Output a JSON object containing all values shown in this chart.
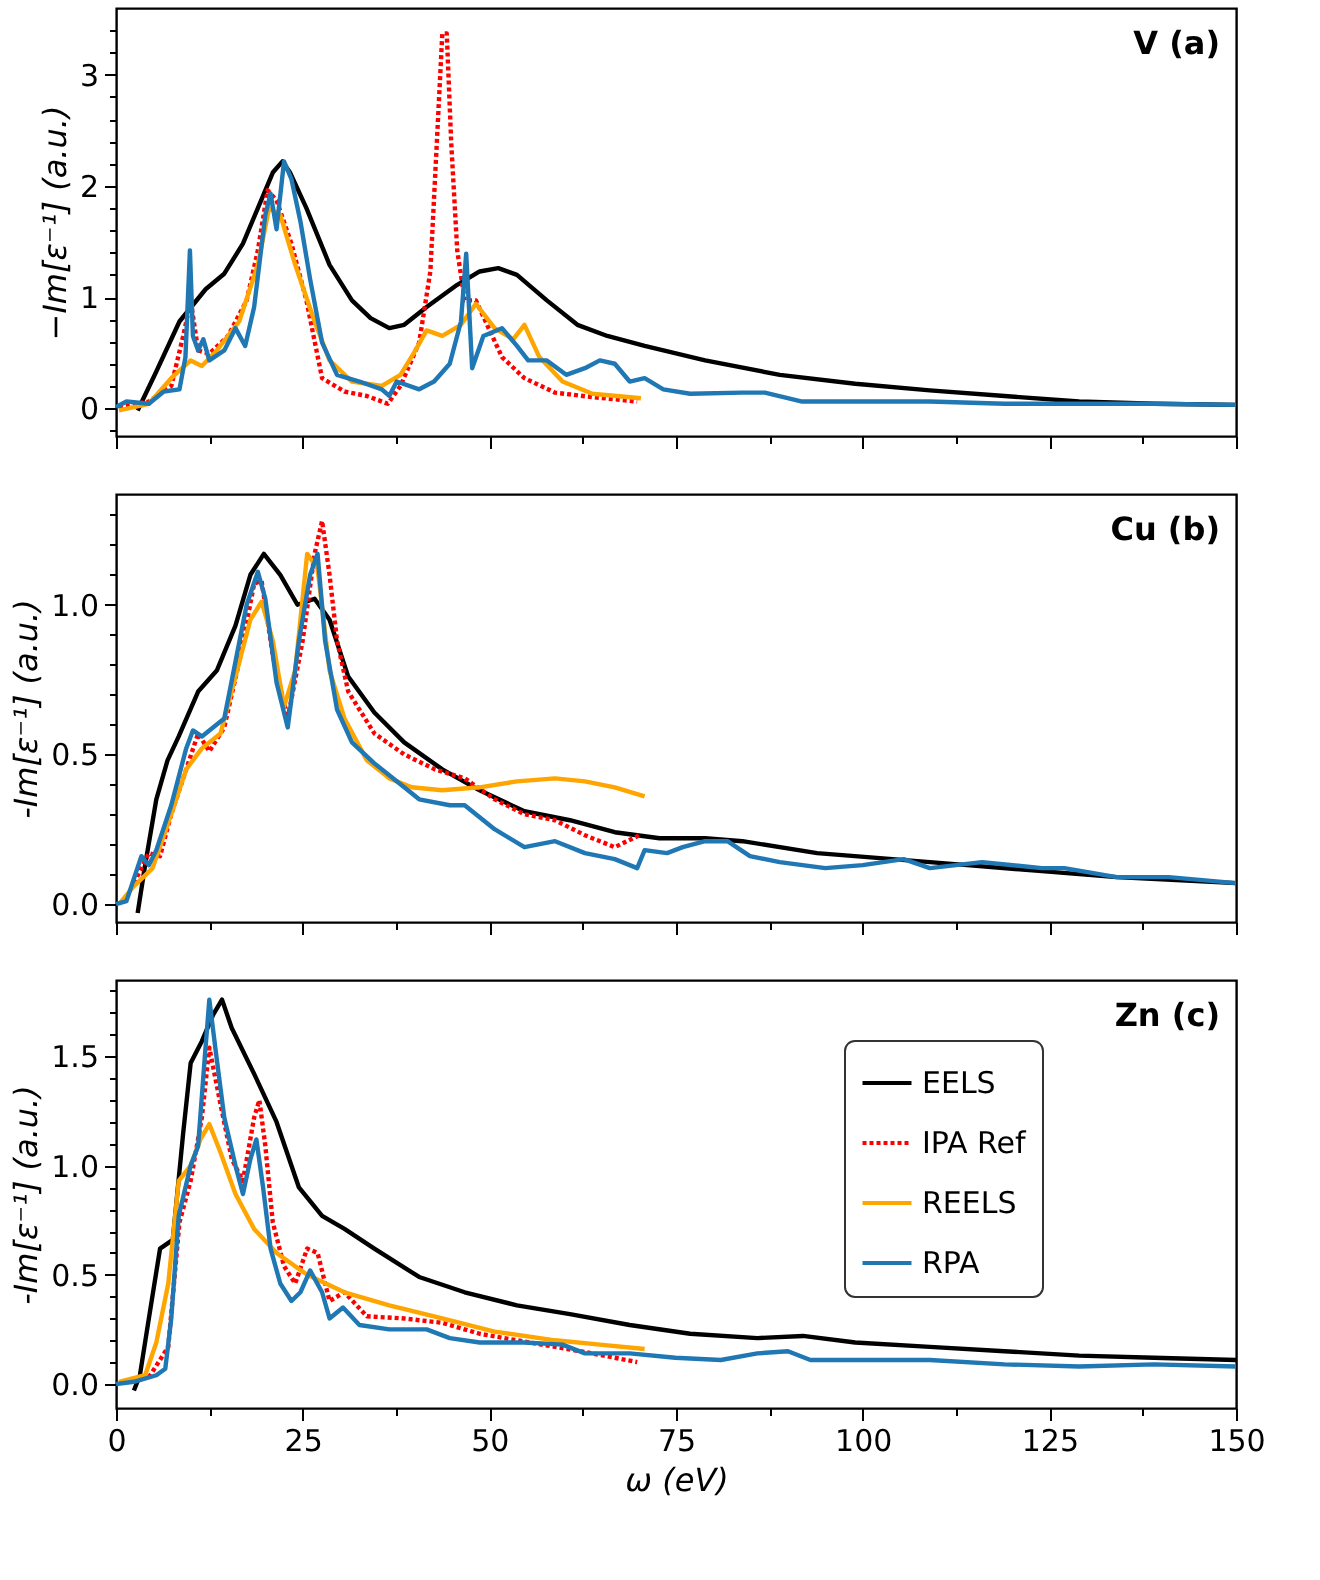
{
  "chart_data": [
    {
      "type": "line",
      "annotations": [
        "V (a)"
      ],
      "ylabel": "−Im[ε⁻¹] (a.u.)",
      "xlim": [
        0,
        150
      ],
      "ylim": [
        -0.25,
        3.6
      ],
      "tick_labels": "y",
      "grid": false,
      "legend": false,
      "xticks": [
        0,
        {
          "value": 12.5,
          "label": null
        },
        25,
        {
          "value": 37.5,
          "label": null
        },
        50,
        {
          "value": 62.5,
          "label": null
        },
        75,
        {
          "value": 87.5,
          "label": null
        },
        100,
        {
          "value": 112.5,
          "label": null
        },
        125,
        {
          "value": 137.5,
          "label": null
        },
        150
      ],
      "yticks": [
        {
          "value": -0.2,
          "label": null
        },
        0,
        {
          "value": 0.2,
          "label": null
        },
        {
          "value": 0.4,
          "label": null
        },
        {
          "value": 0.6,
          "label": null
        },
        {
          "value": 0.8,
          "label": null
        },
        1,
        {
          "value": 1.2,
          "label": null
        },
        {
          "value": 1.4,
          "label": null
        },
        {
          "value": 1.6,
          "label": null
        },
        {
          "value": 1.8,
          "label": null
        },
        2,
        {
          "value": 2.2,
          "label": null
        },
        {
          "value": 2.4,
          "label": null
        },
        {
          "value": 2.6,
          "label": null
        },
        {
          "value": 2.8,
          "label": null
        },
        3,
        {
          "value": 3.2,
          "label": null
        },
        {
          "value": 3.4,
          "label": null
        }
      ],
      "series": [
        {
          "color": "#000000",
          "line_style": "solid",
          "x": [
            2.9,
            5.4,
            8.5,
            12,
            14.5,
            17,
            19,
            21,
            22.3,
            23.3,
            25.5,
            28.6,
            31.6,
            34.1,
            36.6,
            38.6,
            41.6,
            45.7,
            48.7,
            51.2,
            53.7,
            57.7,
            61.8,
            65.8,
            70.8,
            78.9,
            88.9,
            99,
            109,
            119,
            129,
            139,
            150
          ],
          "values": [
            -0.02,
            0.33,
            0.78,
            1.07,
            1.21,
            1.48,
            1.8,
            2.12,
            2.22,
            2.12,
            1.8,
            1.29,
            0.97,
            0.81,
            0.72,
            0.75,
            0.91,
            1.11,
            1.23,
            1.26,
            1.2,
            0.97,
            0.75,
            0.65,
            0.56,
            0.43,
            0.3,
            0.22,
            0.16,
            0.11,
            0.06,
            0.04,
            0.03
          ]
        },
        {
          "color": "#ff0000",
          "line_style": "dotted",
          "x": [
            0.4,
            4.4,
            7.4,
            9,
            10,
            11,
            12.5,
            15,
            17.5,
            19,
            20.3,
            21.5,
            23.5,
            25.5,
            27.6,
            30.6,
            33.6,
            36.4,
            38.1,
            40.6,
            42.1,
            43.2,
            43.7,
            44.3,
            44.9,
            45.7,
            46.7,
            48.2,
            49.7,
            51.7,
            54.7,
            58.8,
            63.8,
            69.8
          ],
          "values": [
            0.01,
            0.06,
            0.2,
            0.65,
            0.97,
            0.52,
            0.49,
            0.65,
            0.97,
            1.42,
            1.96,
            1.87,
            1.48,
            0.97,
            0.27,
            0.15,
            0.11,
            0.04,
            0.2,
            0.59,
            1.23,
            2.7,
            3.37,
            3.37,
            2.38,
            1.42,
            0.97,
            0.97,
            0.75,
            0.46,
            0.27,
            0.14,
            0.1,
            0.06
          ]
        },
        {
          "color": "#ffa500",
          "line_style": "solid",
          "x": [
            0.4,
            4.4,
            7.4,
            10,
            11.5,
            13.5,
            16.5,
            19,
            20.5,
            22,
            24,
            26.6,
            28.6,
            31.6,
            35.6,
            38.1,
            40.1,
            41.6,
            43.7,
            46.2,
            48.2,
            50.7,
            53.2,
            54.7,
            56.7,
            59.8,
            63.8,
            70.3
          ],
          "values": [
            -0.02,
            0.04,
            0.27,
            0.43,
            0.38,
            0.52,
            0.78,
            1.29,
            1.8,
            1.74,
            1.29,
            0.78,
            0.43,
            0.24,
            0.2,
            0.3,
            0.52,
            0.7,
            0.65,
            0.75,
            0.94,
            0.72,
            0.62,
            0.75,
            0.46,
            0.24,
            0.13,
            0.09
          ]
        },
        {
          "color": "#1f77b4",
          "line_style": "solid",
          "x": [
            0,
            1.4,
            4.4,
            6.4,
            8.5,
            9.3,
            9.9,
            10.3,
            11,
            11.7,
            12.5,
            14.5,
            16,
            17.3,
            18.5,
            20,
            20.7,
            21.5,
            22.5,
            23.5,
            24.7,
            26,
            27.6,
            29.6,
            32.6,
            35.6,
            36.6,
            37.6,
            40.6,
            42.6,
            44.7,
            46.2,
            46.9,
            47.7,
            49.2,
            51.7,
            53.7,
            55.2,
            57.7,
            60.3,
            62.8,
            64.8,
            66.8,
            68.8,
            70.8,
            73.3,
            76.9,
            83.9,
            86.9,
            91.9,
            99,
            109,
            119,
            129,
            139,
            150
          ],
          "values": [
            0.01,
            0.06,
            0.04,
            0.15,
            0.17,
            0.46,
            1.42,
            0.65,
            0.52,
            0.62,
            0.43,
            0.52,
            0.72,
            0.56,
            0.91,
            1.74,
            1.93,
            1.61,
            2.22,
            2.06,
            1.68,
            1.16,
            0.59,
            0.3,
            0.24,
            0.17,
            0.11,
            0.24,
            0.17,
            0.24,
            0.4,
            0.78,
            1.39,
            0.36,
            0.65,
            0.72,
            0.56,
            0.43,
            0.43,
            0.3,
            0.36,
            0.43,
            0.4,
            0.24,
            0.27,
            0.17,
            0.13,
            0.14,
            0.14,
            0.06,
            0.06,
            0.06,
            0.04,
            0.04,
            0.04,
            0.03
          ]
        }
      ]
    },
    {
      "type": "line",
      "annotations": [
        "Cu (b)"
      ],
      "ylabel": "-Im[ε⁻¹] (a.u.)",
      "xlim": [
        0,
        150
      ],
      "ylim": [
        -0.06,
        1.37
      ],
      "tick_labels": "y",
      "grid": false,
      "legend": false,
      "xticks": [
        0,
        {
          "value": 12.5,
          "label": null
        },
        25,
        {
          "value": 37.5,
          "label": null
        },
        50,
        {
          "value": 62.5,
          "label": null
        },
        75,
        {
          "value": 87.5,
          "label": null
        },
        100,
        {
          "value": 112.5,
          "label": null
        },
        125,
        {
          "value": 137.5,
          "label": null
        },
        150
      ],
      "yticks": [
        {
          "value": 0,
          "label": "0.0"
        },
        {
          "value": 0.1,
          "label": null
        },
        {
          "value": 0.2,
          "label": null
        },
        {
          "value": 0.3,
          "label": null
        },
        {
          "value": 0.4,
          "label": null
        },
        0.5,
        {
          "value": 0.6,
          "label": null
        },
        {
          "value": 0.7,
          "label": null
        },
        {
          "value": 0.8,
          "label": null
        },
        {
          "value": 0.9,
          "label": null
        },
        {
          "value": 1,
          "label": "1.0"
        },
        {
          "value": 1.1,
          "label": null
        },
        {
          "value": 1.2,
          "label": null
        },
        {
          "value": 1.3,
          "label": null
        }
      ],
      "series": [
        {
          "color": "#000000",
          "line_style": "solid",
          "x": [
            2.9,
            3.9,
            5.4,
            6.9,
            8.4,
            11,
            13.5,
            16,
            18,
            19.8,
            22,
            24.3,
            26.6,
            28.6,
            31.1,
            34.6,
            38.6,
            43.7,
            48.7,
            54.7,
            60.8,
            66.8,
            72.8,
            78.9,
            83.9,
            93.9,
            104,
            114,
            124,
            134,
            150
          ],
          "values": [
            -0.03,
            0.13,
            0.35,
            0.48,
            0.56,
            0.71,
            0.78,
            0.93,
            1.1,
            1.17,
            1.1,
            1.0,
            1.02,
            0.95,
            0.76,
            0.64,
            0.54,
            0.45,
            0.38,
            0.31,
            0.28,
            0.24,
            0.22,
            0.22,
            0.21,
            0.17,
            0.15,
            0.13,
            0.11,
            0.09,
            0.07
          ]
        },
        {
          "color": "#ff0000",
          "line_style": "dotted",
          "x": [
            2.4,
            4.4,
            5.9,
            7.4,
            9.4,
            11,
            12.5,
            14.5,
            16.5,
            18.5,
            19.5,
            21,
            23,
            25,
            26.6,
            27.6,
            28.6,
            29.6,
            31.1,
            34.6,
            38.6,
            42.7,
            46.7,
            50.7,
            54.7,
            58.8,
            62.8,
            66.8,
            70.1
          ],
          "values": [
            0.07,
            0.17,
            0.16,
            0.3,
            0.45,
            0.57,
            0.51,
            0.59,
            0.81,
            1.07,
            1.08,
            0.83,
            0.62,
            0.88,
            1.17,
            1.28,
            1.1,
            0.88,
            0.71,
            0.57,
            0.5,
            0.45,
            0.42,
            0.35,
            0.3,
            0.28,
            0.23,
            0.19,
            0.23
          ]
        },
        {
          "color": "#ffa500",
          "line_style": "solid",
          "x": [
            0.4,
            2.4,
            4.9,
            7.4,
            9.4,
            11.5,
            14,
            16,
            18,
            19.5,
            21,
            22.5,
            24,
            25.6,
            27,
            28.6,
            30.6,
            33.6,
            36.6,
            39.6,
            43.7,
            48.7,
            53.7,
            58.8,
            62.8,
            66.8,
            70.8
          ],
          "values": [
            0,
            0.06,
            0.12,
            0.3,
            0.45,
            0.52,
            0.57,
            0.76,
            0.95,
            1.01,
            0.88,
            0.66,
            0.78,
            1.17,
            1.12,
            0.78,
            0.62,
            0.48,
            0.42,
            0.39,
            0.38,
            0.39,
            0.41,
            0.42,
            0.41,
            0.39,
            0.36
          ]
        },
        {
          "color": "#1f77b4",
          "line_style": "solid",
          "x": [
            0,
            1.4,
            3.4,
            4.4,
            5.4,
            7.4,
            9.4,
            10.3,
            11.5,
            12.5,
            14.5,
            16,
            17.5,
            19,
            20,
            21.5,
            23,
            24.5,
            26,
            27,
            28,
            29.6,
            31.6,
            34.6,
            37.6,
            40.6,
            44.7,
            46.7,
            50.7,
            54.7,
            58.8,
            62.8,
            66.8,
            69.8,
            70.8,
            73.8,
            75.9,
            78.9,
            81.9,
            84.9,
            88.9,
            95,
            100,
            105.5,
            109,
            116,
            124,
            127,
            134,
            141,
            150
          ],
          "values": [
            0,
            0.01,
            0.16,
            0.13,
            0.18,
            0.33,
            0.52,
            0.58,
            0.56,
            0.58,
            0.62,
            0.81,
            1.0,
            1.11,
            1.02,
            0.74,
            0.59,
            0.88,
            1.1,
            1.17,
            0.88,
            0.65,
            0.54,
            0.47,
            0.41,
            0.35,
            0.33,
            0.33,
            0.25,
            0.19,
            0.21,
            0.17,
            0.15,
            0.12,
            0.18,
            0.17,
            0.19,
            0.21,
            0.21,
            0.16,
            0.14,
            0.12,
            0.13,
            0.15,
            0.12,
            0.14,
            0.12,
            0.12,
            0.09,
            0.09,
            0.07
          ]
        }
      ]
    },
    {
      "type": "line",
      "annotations": [
        "Zn (c)"
      ],
      "ylabel": "-Im[ε⁻¹] (a.u.)",
      "xlabel": "ω (eV)",
      "xlim": [
        0,
        150
      ],
      "ylim": [
        -0.11,
        1.85
      ],
      "grid": false,
      "legend": "right",
      "xticks": [
        0,
        {
          "value": 12.5,
          "label": null
        },
        25,
        {
          "value": 37.5,
          "label": null
        },
        50,
        {
          "value": 62.5,
          "label": null
        },
        75,
        {
          "value": 87.5,
          "label": null
        },
        100,
        {
          "value": 112.5,
          "label": null
        },
        125,
        {
          "value": 137.5,
          "label": null
        },
        150
      ],
      "yticks": [
        {
          "value": 0,
          "label": "0.0"
        },
        {
          "value": 0.1,
          "label": null
        },
        {
          "value": 0.2,
          "label": null
        },
        {
          "value": 0.3,
          "label": null
        },
        {
          "value": 0.4,
          "label": null
        },
        0.5,
        {
          "value": 0.6,
          "label": null
        },
        {
          "value": 0.7,
          "label": null
        },
        {
          "value": 0.8,
          "label": null
        },
        {
          "value": 0.9,
          "label": null
        },
        {
          "value": 1,
          "label": "1.0"
        },
        {
          "value": 1.1,
          "label": null
        },
        {
          "value": 1.2,
          "label": null
        },
        {
          "value": 1.3,
          "label": null
        },
        {
          "value": 1.4,
          "label": null
        },
        1.5,
        {
          "value": 1.6,
          "label": null
        },
        {
          "value": 1.7,
          "label": null
        },
        {
          "value": 1.8,
          "label": null
        }
      ],
      "series": [
        {
          "name": "EELS",
          "color": "#000000",
          "line_style": "solid",
          "x": [
            2.4,
            3.2,
            4.4,
            5.9,
            7.6,
            9,
            10,
            11.5,
            13,
            14.2,
            15.5,
            18.5,
            21.5,
            24.5,
            27.6,
            30.6,
            34.6,
            40.6,
            46.7,
            53.7,
            60.8,
            68.8,
            76.9,
            85.9,
            92,
            99,
            109,
            119,
            129,
            139,
            150
          ],
          "values": [
            -0.03,
            0.04,
            0.3,
            0.62,
            0.66,
            1.15,
            1.47,
            1.57,
            1.69,
            1.76,
            1.63,
            1.42,
            1.2,
            0.9,
            0.77,
            0.71,
            0.62,
            0.49,
            0.42,
            0.36,
            0.32,
            0.27,
            0.23,
            0.21,
            0.22,
            0.19,
            0.17,
            0.15,
            0.13,
            0.12,
            0.11
          ]
        },
        {
          "name": "IPA Ref",
          "color": "#ff0000",
          "line_style": "dotted",
          "x": [
            4.4,
            7,
            8.5,
            10,
            11.5,
            12.5,
            14,
            15.5,
            17,
            18.5,
            19.2,
            20,
            21,
            22.5,
            24,
            25.6,
            27,
            28.6,
            30.6,
            33.6,
            38.6,
            43.7,
            48.7,
            53.7,
            58.8,
            63.8,
            69.8
          ],
          "values": [
            0.03,
            0.17,
            0.74,
            0.93,
            1.22,
            1.54,
            1.28,
            1.03,
            0.93,
            1.22,
            1.3,
            1.09,
            0.74,
            0.54,
            0.46,
            0.62,
            0.6,
            0.38,
            0.42,
            0.31,
            0.3,
            0.28,
            0.23,
            0.2,
            0.17,
            0.14,
            0.1
          ]
        },
        {
          "name": "REELS",
          "color": "#ffa500",
          "line_style": "solid",
          "x": [
            0.4,
            3.9,
            5.4,
            7,
            8.4,
            10,
            11.3,
            12.5,
            14,
            16,
            18.5,
            21.5,
            25.6,
            30.6,
            36.6,
            43.7,
            50.7,
            58.8,
            64.8,
            70.8
          ],
          "values": [
            0.01,
            0.04,
            0.19,
            0.46,
            0.93,
            1.0,
            1.12,
            1.19,
            1.06,
            0.87,
            0.71,
            0.6,
            0.5,
            0.42,
            0.36,
            0.3,
            0.24,
            0.2,
            0.18,
            0.16
          ]
        },
        {
          "name": "RPA",
          "color": "#1f77b4",
          "line_style": "solid",
          "x": [
            0,
            2.4,
            5.4,
            6.6,
            7.4,
            8.4,
            10,
            11,
            11.9,
            12.5,
            13.3,
            14.5,
            16,
            17,
            18,
            18.8,
            19.7,
            20.7,
            22,
            23.5,
            24.7,
            26,
            27.6,
            28.6,
            30.4,
            32.6,
            36.6,
            41.6,
            44.7,
            48.7,
            54.7,
            59.8,
            62.8,
            68.8,
            74.9,
            81,
            85.9,
            90,
            93,
            99,
            109,
            119,
            129,
            139,
            150
          ],
          "values": [
            0,
            0.01,
            0.04,
            0.07,
            0.3,
            0.77,
            1.0,
            1.09,
            1.5,
            1.76,
            1.54,
            1.22,
            1.0,
            0.87,
            1.03,
            1.12,
            0.9,
            0.62,
            0.46,
            0.38,
            0.42,
            0.52,
            0.42,
            0.3,
            0.35,
            0.27,
            0.25,
            0.25,
            0.21,
            0.19,
            0.19,
            0.18,
            0.14,
            0.14,
            0.12,
            0.11,
            0.14,
            0.15,
            0.11,
            0.11,
            0.11,
            0.09,
            0.08,
            0.09,
            0.08
          ]
        }
      ]
    }
  ]
}
